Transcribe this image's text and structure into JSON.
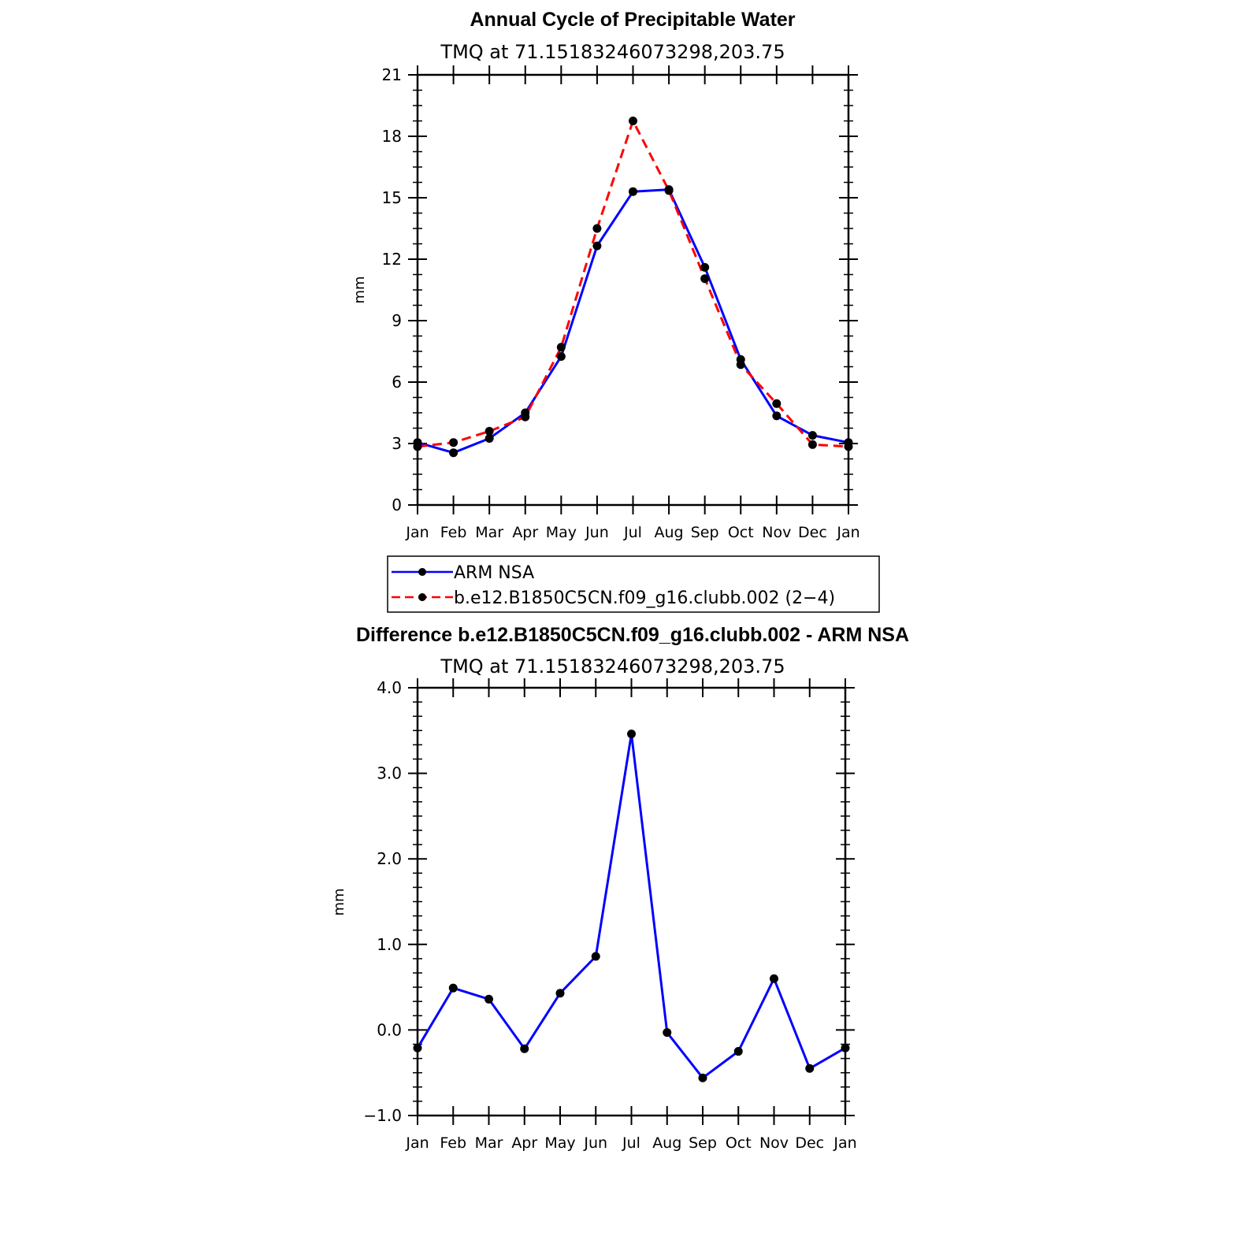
{
  "chart_data": [
    {
      "type": "line",
      "title": "Annual Cycle of Precipitable Water",
      "subtitle": "TMQ at 71.15183246073298,203.75",
      "ylabel": "mm",
      "xlabel": "",
      "ylim": [
        0,
        21
      ],
      "yticks": [
        0,
        3,
        6,
        9,
        12,
        15,
        18,
        21
      ],
      "ytick_labels": [
        "0",
        "3",
        "6",
        "9",
        "12",
        "15",
        "18",
        "21"
      ],
      "categories": [
        "Jan",
        "Feb",
        "Mar",
        "Apr",
        "May",
        "Jun",
        "Jul",
        "Aug",
        "Sep",
        "Oct",
        "Nov",
        "Dec",
        "Jan"
      ],
      "series": [
        {
          "name": "ARM NSA",
          "color": "#0000ff",
          "style": "solid",
          "values": [
            3.05,
            2.55,
            3.25,
            4.5,
            7.25,
            12.65,
            15.3,
            15.4,
            11.6,
            7.1,
            4.35,
            3.4,
            3.05
          ]
        },
        {
          "name": "b.e12.B1850C5CN.f09_g16.clubb.002 (2−4)",
          "color": "#ff0000",
          "style": "dashed",
          "values": [
            2.85,
            3.05,
            3.6,
            4.3,
            7.7,
            13.5,
            18.75,
            15.35,
            11.05,
            6.85,
            4.95,
            2.95,
            2.85
          ]
        }
      ],
      "legend": {
        "position": "bottom",
        "entries": [
          "ARM NSA",
          "b.e12.B1850C5CN.f09_g16.clubb.002 (2−4)"
        ]
      }
    },
    {
      "type": "line",
      "title": "Difference b.e12.B1850C5CN.f09_g16.clubb.002 - ARM NSA",
      "subtitle": "TMQ at 71.15183246073298,203.75",
      "ylabel": "mm",
      "xlabel": "",
      "ylim": [
        -1.0,
        4.0
      ],
      "yticks": [
        -1.0,
        0.0,
        1.0,
        2.0,
        3.0,
        4.0
      ],
      "ytick_labels": [
        "−1.0",
        "0.0",
        "1.0",
        "2.0",
        "3.0",
        "4.0"
      ],
      "categories": [
        "Jan",
        "Feb",
        "Mar",
        "Apr",
        "May",
        "Jun",
        "Jul",
        "Aug",
        "Sep",
        "Oct",
        "Nov",
        "Dec",
        "Jan"
      ],
      "series": [
        {
          "name": "Difference",
          "color": "#0000ff",
          "style": "solid",
          "values": [
            -0.21,
            0.49,
            0.36,
            -0.22,
            0.43,
            0.86,
            3.46,
            -0.03,
            -0.56,
            -0.25,
            0.6,
            -0.45,
            -0.21
          ]
        }
      ]
    }
  ]
}
